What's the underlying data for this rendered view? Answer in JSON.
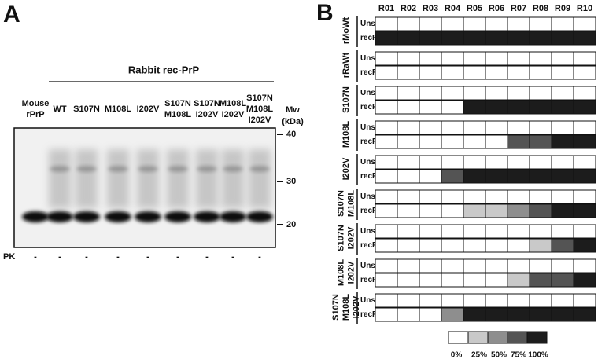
{
  "panel_a": {
    "label": "A",
    "group_label": "Rabbit rec-PrP",
    "lanes": [
      [
        "Mouse",
        "rPrP"
      ],
      [
        "WT"
      ],
      [
        "S107N"
      ],
      [
        "M108L"
      ],
      [
        "I202V"
      ],
      [
        "S107N",
        "M108L"
      ],
      [
        "S107N",
        "I202V"
      ],
      [
        "M108L",
        "I202V"
      ],
      [
        "S107N",
        "M108L",
        "I202V"
      ]
    ],
    "mw_label": [
      "Mw",
      "(kDa)"
    ],
    "markers": [
      40,
      30,
      20
    ],
    "pk_label": "PK",
    "pk_values": [
      "-",
      "-",
      "-",
      "-",
      "-",
      "-",
      "-",
      "-",
      "-"
    ]
  },
  "panel_b": {
    "label": "B",
    "columns": [
      "R01",
      "R02",
      "R03",
      "R04",
      "R05",
      "R06",
      "R07",
      "R08",
      "R09",
      "R10"
    ],
    "row_labels": [
      "Unseeded",
      "recRML"
    ],
    "groups": [
      {
        "name": [
          "rMoWt"
        ],
        "rows": [
          [
            0,
            0,
            0,
            0,
            0,
            0,
            0,
            0,
            0,
            0
          ],
          [
            100,
            100,
            100,
            100,
            100,
            100,
            100,
            100,
            100,
            100
          ]
        ]
      },
      {
        "name": [
          "rRaWt"
        ],
        "rows": [
          [
            0,
            0,
            0,
            0,
            0,
            0,
            0,
            0,
            0,
            0
          ],
          [
            0,
            0,
            0,
            0,
            0,
            0,
            0,
            0,
            0,
            0
          ]
        ]
      },
      {
        "name": [
          "S107N"
        ],
        "rows": [
          [
            0,
            0,
            0,
            0,
            0,
            0,
            0,
            0,
            0,
            0
          ],
          [
            0,
            0,
            0,
            0,
            100,
            100,
            100,
            100,
            100,
            100
          ]
        ]
      },
      {
        "name": [
          "M108L"
        ],
        "rows": [
          [
            0,
            0,
            0,
            0,
            0,
            0,
            0,
            0,
            0,
            0
          ],
          [
            0,
            0,
            0,
            0,
            0,
            0,
            75,
            75,
            100,
            100
          ]
        ]
      },
      {
        "name": [
          "I202V"
        ],
        "rows": [
          [
            0,
            0,
            0,
            0,
            0,
            0,
            0,
            0,
            0,
            0
          ],
          [
            0,
            0,
            0,
            75,
            100,
            100,
            100,
            100,
            100,
            100
          ]
        ]
      },
      {
        "name": [
          "S107N",
          "M108L"
        ],
        "rows": [
          [
            0,
            0,
            0,
            0,
            0,
            0,
            0,
            0,
            0,
            0
          ],
          [
            0,
            0,
            0,
            0,
            25,
            25,
            50,
            75,
            100,
            100
          ]
        ]
      },
      {
        "name": [
          "S107N",
          "I202V"
        ],
        "rows": [
          [
            0,
            0,
            0,
            0,
            0,
            0,
            0,
            0,
            0,
            0
          ],
          [
            0,
            0,
            0,
            0,
            0,
            0,
            0,
            25,
            75,
            100
          ]
        ]
      },
      {
        "name": [
          "M108L",
          "I202V"
        ],
        "rows": [
          [
            0,
            0,
            0,
            0,
            0,
            0,
            0,
            0,
            0,
            0
          ],
          [
            0,
            0,
            0,
            0,
            0,
            0,
            25,
            75,
            75,
            100
          ]
        ]
      },
      {
        "name": [
          "S107N",
          "M108L",
          "I202V"
        ],
        "rows": [
          [
            0,
            0,
            0,
            0,
            0,
            0,
            0,
            0,
            0,
            0
          ],
          [
            0,
            0,
            0,
            50,
            100,
            100,
            100,
            100,
            100,
            100
          ]
        ]
      }
    ],
    "legend": [
      {
        "value": 0,
        "label": "0%"
      },
      {
        "value": 25,
        "label": "25%"
      },
      {
        "value": 50,
        "label": "50%"
      },
      {
        "value": 75,
        "label": "75%"
      },
      {
        "value": 100,
        "label": "100%"
      }
    ],
    "colors": [
      "#ffffff",
      "#c9c9c9",
      "#8e8e8e",
      "#545454",
      "#1c1c1c"
    ]
  }
}
